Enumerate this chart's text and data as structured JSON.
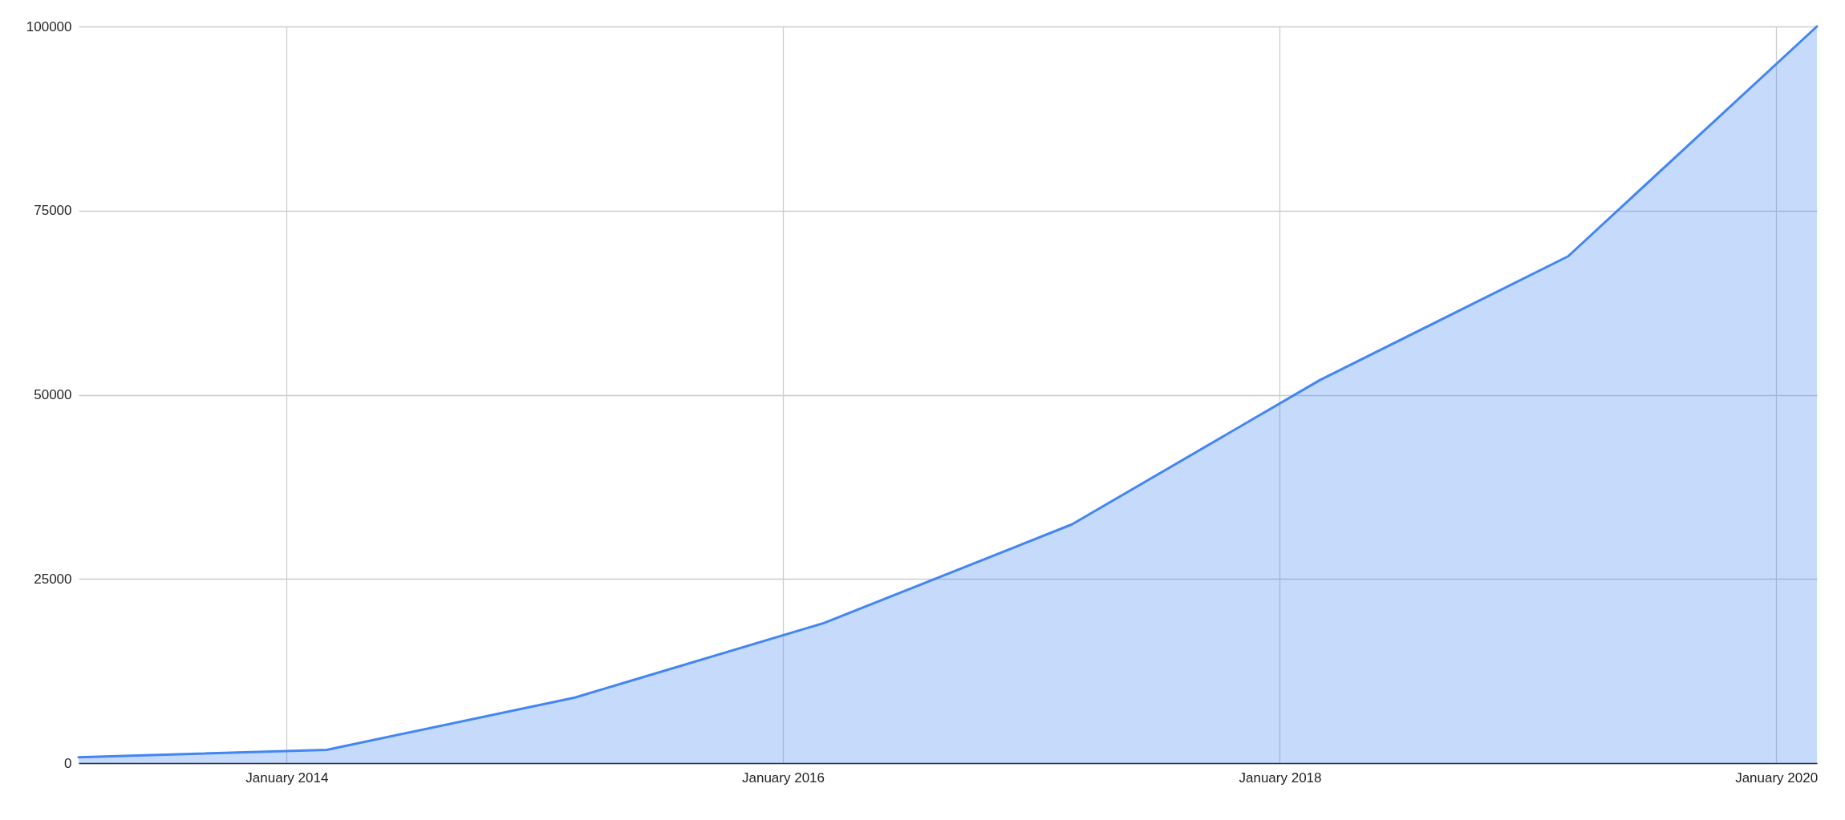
{
  "chart_data": {
    "type": "area",
    "x": [
      "2013-03",
      "2014-03",
      "2015-03",
      "2016-03",
      "2017-03",
      "2018-03",
      "2019-03",
      "2020-03"
    ],
    "series": [
      {
        "color": "#4285f4",
        "values": [
          800,
          1800,
          8900,
          19000,
          32400,
          52000,
          68800,
          100000
        ]
      }
    ],
    "xlim": [
      "2013-03",
      "2020-03"
    ],
    "xticks": [
      {
        "value": "2014-01",
        "label": "January 2014"
      },
      {
        "value": "2016-01",
        "label": "January 2016"
      },
      {
        "value": "2018-01",
        "label": "January 2018"
      },
      {
        "value": "2020-01",
        "label": "January 2020"
      }
    ],
    "ylim": [
      0,
      100000
    ],
    "yticks": [
      0,
      25000,
      50000,
      75000,
      100000
    ],
    "grid": true
  }
}
